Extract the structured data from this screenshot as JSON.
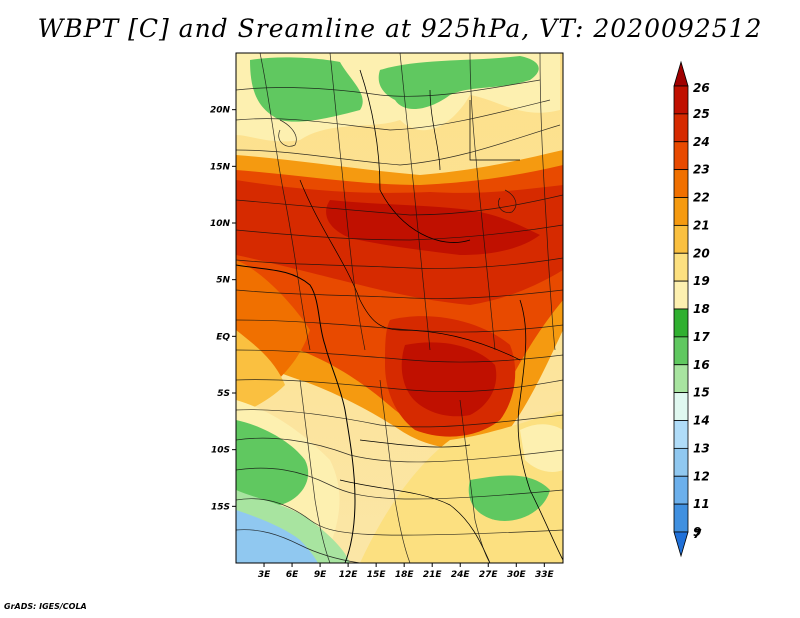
{
  "title": "WBPT [C] and Sreamline at 925hPa, VT: 2020092512",
  "credit": "GrADS: IGES/COLA",
  "map": {
    "lon_range": [
      0,
      35
    ],
    "lat_range": [
      -20,
      25
    ],
    "lat_ticks": [
      {
        "value": 20,
        "label": "20N"
      },
      {
        "value": 15,
        "label": "15N"
      },
      {
        "value": 10,
        "label": "10N"
      },
      {
        "value": 5,
        "label": "5N"
      },
      {
        "value": 0,
        "label": "EQ"
      },
      {
        "value": -5,
        "label": "5S"
      },
      {
        "value": -10,
        "label": "10S"
      },
      {
        "value": -15,
        "label": "15S"
      }
    ],
    "lon_ticks": [
      {
        "value": 3,
        "label": "3E"
      },
      {
        "value": 6,
        "label": "6E"
      },
      {
        "value": 9,
        "label": "9E"
      },
      {
        "value": 12,
        "label": "12E"
      },
      {
        "value": 15,
        "label": "15E"
      },
      {
        "value": 18,
        "label": "18E"
      },
      {
        "value": 21,
        "label": "21E"
      },
      {
        "value": 24,
        "label": "24E"
      },
      {
        "value": 27,
        "label": "27E"
      },
      {
        "value": 30,
        "label": "30E"
      },
      {
        "value": 33,
        "label": "33E"
      }
    ]
  },
  "colorbar": {
    "levels": [
      "26",
      "25",
      "24",
      "23",
      "22",
      "21",
      "20",
      "19",
      "18",
      "17",
      "16",
      "15",
      "14",
      "13",
      "12",
      "11",
      "9",
      "7"
    ],
    "colors": [
      "#a00000",
      "#c01000",
      "#d62a00",
      "#e84a00",
      "#f07000",
      "#f59a10",
      "#fac040",
      "#fce080",
      "#fdf0b0",
      "#30b030",
      "#60c860",
      "#a8e4a0",
      "#e0f8f0",
      "#b0dcf8",
      "#90c8f0",
      "#6cb0ec",
      "#4090e0",
      "#2070d8"
    ]
  }
}
